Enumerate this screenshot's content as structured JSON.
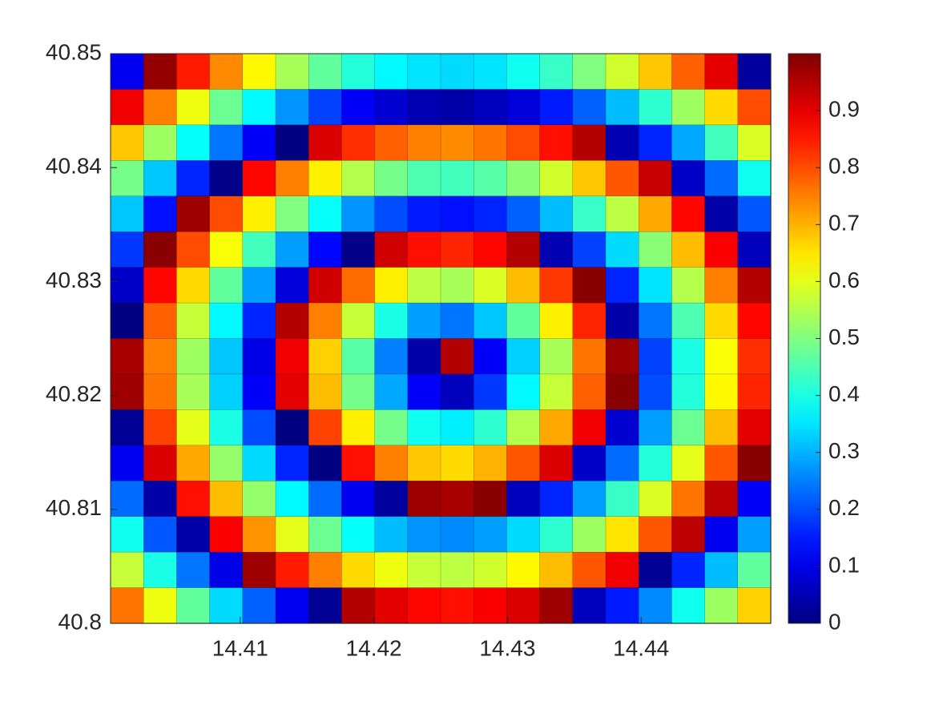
{
  "chart_data": {
    "type": "heatmap",
    "colormap": "jet",
    "xlim": [
      14.4003,
      14.4497
    ],
    "ylim": [
      40.8,
      40.85
    ],
    "xticks": [
      14.41,
      14.42,
      14.43,
      14.44
    ],
    "yticks": [
      40.8,
      40.81,
      40.82,
      40.83,
      40.84,
      40.85
    ],
    "clim": [
      0,
      1
    ],
    "cticks": [
      0,
      0.1,
      0.2,
      0.3,
      0.4,
      0.5,
      0.6,
      0.7,
      0.8,
      0.9
    ],
    "z": [
      [
        0.11,
        0.98,
        0.85,
        0.74,
        0.63,
        0.54,
        0.47,
        0.41,
        0.37,
        0.35,
        0.34,
        0.35,
        0.39,
        0.43,
        0.5,
        0.58,
        0.68,
        0.78,
        0.9,
        0.03
      ],
      [
        0.89,
        0.75,
        0.61,
        0.48,
        0.37,
        0.27,
        0.19,
        0.12,
        0.08,
        0.05,
        0.04,
        0.06,
        0.09,
        0.15,
        0.22,
        0.31,
        0.42,
        0.53,
        0.66,
        0.8
      ],
      [
        0.68,
        0.53,
        0.38,
        0.24,
        0.12,
        0.0,
        0.91,
        0.83,
        0.78,
        0.75,
        0.74,
        0.76,
        0.8,
        0.86,
        0.95,
        0.05,
        0.16,
        0.29,
        0.44,
        0.59
      ],
      [
        0.49,
        0.32,
        0.16,
        0.01,
        0.87,
        0.75,
        0.64,
        0.55,
        0.49,
        0.45,
        0.44,
        0.46,
        0.51,
        0.58,
        0.68,
        0.79,
        0.93,
        0.07,
        0.23,
        0.39
      ],
      [
        0.32,
        0.14,
        0.97,
        0.8,
        0.64,
        0.5,
        0.38,
        0.27,
        0.2,
        0.15,
        0.14,
        0.16,
        0.22,
        0.31,
        0.43,
        0.56,
        0.71,
        0.87,
        0.04,
        0.21
      ],
      [
        0.18,
        0.99,
        0.8,
        0.62,
        0.44,
        0.28,
        0.13,
        0.01,
        0.92,
        0.86,
        0.84,
        0.87,
        0.95,
        0.05,
        0.19,
        0.34,
        0.51,
        0.69,
        0.88,
        0.06
      ],
      [
        0.07,
        0.87,
        0.66,
        0.47,
        0.28,
        0.09,
        0.92,
        0.77,
        0.64,
        0.56,
        0.54,
        0.59,
        0.69,
        0.82,
        0.99,
        0.16,
        0.35,
        0.55,
        0.75,
        0.95
      ],
      [
        0.0,
        0.78,
        0.57,
        0.37,
        0.16,
        0.95,
        0.75,
        0.57,
        0.4,
        0.28,
        0.24,
        0.32,
        0.47,
        0.64,
        0.84,
        0.04,
        0.24,
        0.45,
        0.66,
        0.87
      ],
      [
        0.96,
        0.75,
        0.53,
        0.32,
        0.1,
        0.89,
        0.67,
        0.46,
        0.25,
        0.04,
        0.95,
        0.12,
        0.33,
        0.54,
        0.76,
        0.97,
        0.19,
        0.4,
        0.62,
        0.83
      ],
      [
        0.97,
        0.76,
        0.54,
        0.33,
        0.12,
        0.9,
        0.69,
        0.49,
        0.29,
        0.12,
        0.06,
        0.18,
        0.37,
        0.57,
        0.78,
        0.99,
        0.2,
        0.41,
        0.63,
        0.84
      ],
      [
        0.02,
        0.81,
        0.6,
        0.4,
        0.2,
        0.0,
        0.81,
        0.64,
        0.49,
        0.39,
        0.36,
        0.42,
        0.55,
        0.71,
        0.89,
        0.08,
        0.28,
        0.48,
        0.69,
        0.9
      ],
      [
        0.11,
        0.91,
        0.71,
        0.52,
        0.34,
        0.16,
        0.0,
        0.86,
        0.75,
        0.68,
        0.66,
        0.7,
        0.79,
        0.91,
        0.07,
        0.23,
        0.41,
        0.6,
        0.79,
        0.99
      ],
      [
        0.23,
        0.04,
        0.86,
        0.69,
        0.52,
        0.37,
        0.23,
        0.11,
        0.03,
        0.97,
        0.96,
        0.99,
        0.06,
        0.16,
        0.28,
        0.43,
        0.59,
        0.76,
        0.94,
        0.12
      ],
      [
        0.39,
        0.21,
        0.04,
        0.88,
        0.73,
        0.6,
        0.48,
        0.38,
        0.31,
        0.27,
        0.26,
        0.28,
        0.34,
        0.42,
        0.53,
        0.65,
        0.79,
        0.94,
        0.11,
        0.28
      ],
      [
        0.57,
        0.4,
        0.24,
        0.1,
        0.97,
        0.85,
        0.75,
        0.66,
        0.61,
        0.57,
        0.56,
        0.58,
        0.63,
        0.69,
        0.79,
        0.89,
        0.02,
        0.16,
        0.31,
        0.47
      ],
      [
        0.76,
        0.61,
        0.47,
        0.34,
        0.22,
        0.11,
        0.02,
        0.95,
        0.9,
        0.87,
        0.86,
        0.88,
        0.91,
        0.97,
        0.06,
        0.15,
        0.26,
        0.39,
        0.53,
        0.67
      ]
    ]
  }
}
